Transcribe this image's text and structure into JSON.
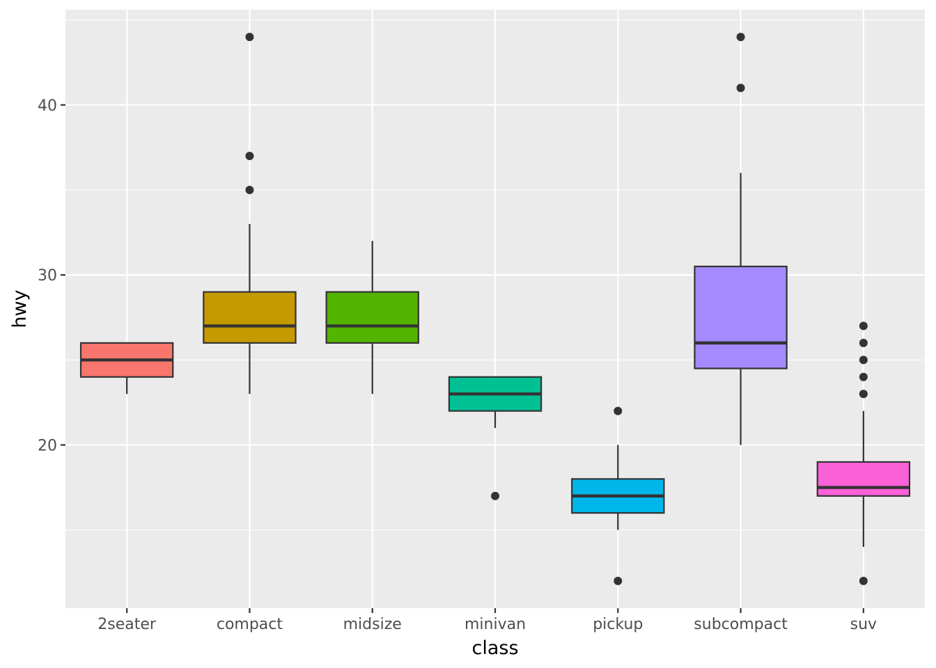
{
  "chart_data": {
    "type": "boxplot",
    "title": "",
    "xlabel": "class",
    "ylabel": "hwy",
    "ylim": [
      10.4,
      45.6
    ],
    "yticks": [
      20,
      30,
      40
    ],
    "grid": true,
    "legend": "none",
    "colors": {
      "panel_background": "#ebebeb",
      "grid": "#ffffff",
      "box_outline": "#333333",
      "tick_text": "#4d4d4d"
    },
    "categories": [
      "2seater",
      "compact",
      "midsize",
      "minivan",
      "pickup",
      "subcompact",
      "suv"
    ],
    "boxes": [
      {
        "category": "2seater",
        "fill": "#F8766D",
        "lower_whisker": 23,
        "q1": 24,
        "median": 25,
        "q3": 26,
        "upper_whisker": 26,
        "outliers": []
      },
      {
        "category": "compact",
        "fill": "#C49A00",
        "lower_whisker": 23,
        "q1": 26,
        "median": 27,
        "q3": 29,
        "upper_whisker": 33,
        "outliers": [
          35,
          37,
          44
        ]
      },
      {
        "category": "midsize",
        "fill": "#53B400",
        "lower_whisker": 23,
        "q1": 26,
        "median": 27,
        "q3": 29,
        "upper_whisker": 32,
        "outliers": []
      },
      {
        "category": "minivan",
        "fill": "#00C094",
        "lower_whisker": 21,
        "q1": 22,
        "median": 23,
        "q3": 24,
        "upper_whisker": 24,
        "outliers": [
          17
        ]
      },
      {
        "category": "pickup",
        "fill": "#00B6EB",
        "lower_whisker": 15,
        "q1": 16,
        "median": 17,
        "q3": 18,
        "upper_whisker": 20,
        "outliers": [
          12,
          22
        ]
      },
      {
        "category": "subcompact",
        "fill": "#A58AFF",
        "lower_whisker": 20,
        "q1": 24.5,
        "median": 26,
        "q3": 30.5,
        "upper_whisker": 36,
        "outliers": [
          41,
          44
        ]
      },
      {
        "category": "suv",
        "fill": "#FB61D7",
        "lower_whisker": 14,
        "q1": 17,
        "median": 17.5,
        "q3": 19,
        "upper_whisker": 22,
        "outliers": [
          12,
          23,
          24,
          25,
          26,
          27
        ]
      }
    ]
  }
}
